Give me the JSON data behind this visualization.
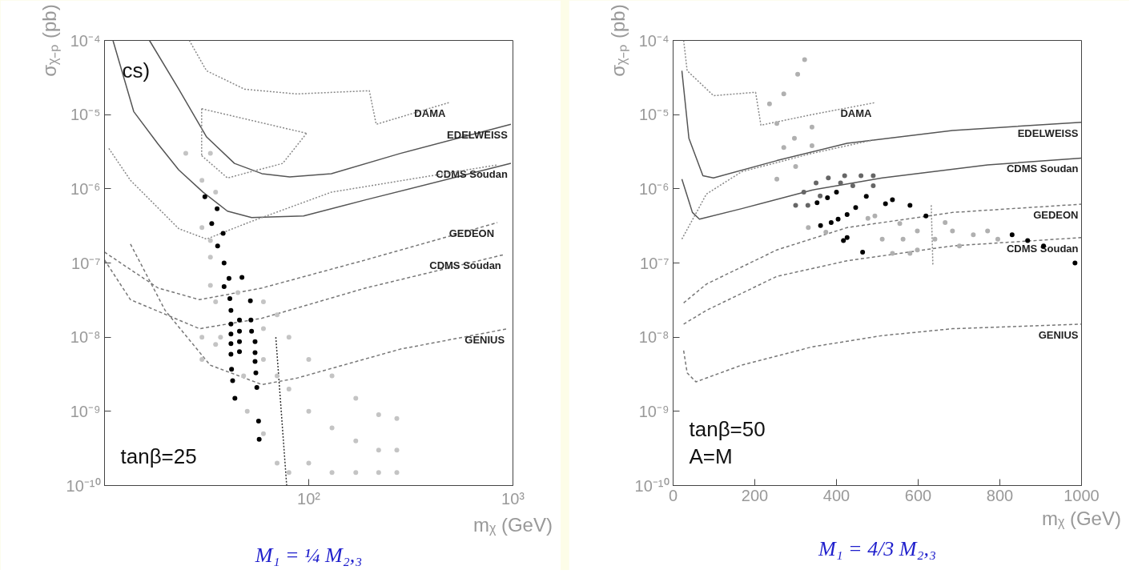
{
  "chart_data": [
    {
      "type": "line",
      "title": "M₁ = ¼ M₂,₃",
      "subtitle": "cs)",
      "xlabel": "mᵪ (GeV)",
      "ylabel": "σᵪ₋ₚ (pb)",
      "log": "xy",
      "grid": false,
      "xlim": [
        10,
        1000
      ],
      "ylim": [
        1e-10,
        0.0001
      ],
      "xticks": [
        {
          "value": 100,
          "label": "10²"
        },
        {
          "value": 1000,
          "label": "10³"
        }
      ],
      "yticks": [
        {
          "value": 1e-10,
          "label": "10⁻¹⁰"
        },
        {
          "value": 1e-09,
          "label": "10⁻⁹"
        },
        {
          "value": 1e-08,
          "label": "10⁻⁸"
        },
        {
          "value": 1e-07,
          "label": "10⁻⁷"
        },
        {
          "value": 1e-06,
          "label": "10⁻⁶"
        },
        {
          "value": 1e-05,
          "label": "10⁻⁵"
        },
        {
          "value": 0.0001,
          "label": "10⁻⁴"
        }
      ],
      "series": [
        {
          "type": "scatter",
          "color": "#c4c4c4",
          "x": [
            30,
            30,
            35,
            35,
            33,
            37,
            45,
            48,
            60,
            50,
            60,
            60,
            60,
            70,
            70,
            70,
            80,
            80,
            80,
            100,
            100,
            100,
            130,
            130,
            130,
            170,
            170,
            170,
            220,
            220,
            220,
            270,
            270,
            270,
            25,
            33,
            30,
            35,
            30,
            33,
            33
          ],
          "values": [
            1e-08,
            5e-09,
            3e-08,
            8e-09,
            5e-08,
            1e-08,
            4e-08,
            3e-09,
            1.3e-08,
            1e-09,
            3e-08,
            5e-09,
            5e-10,
            2e-08,
            3e-09,
            2e-10,
            1e-08,
            2e-09,
            1.5e-10,
            5e-09,
            1e-09,
            2e-10,
            3e-09,
            6e-10,
            1.5e-10,
            1.5e-09,
            4e-10,
            1.5e-10,
            9e-10,
            3e-10,
            1.5e-10,
            8e-10,
            3e-10,
            1.5e-10,
            3e-06,
            3e-06,
            1.3e-06,
            9e-07,
            3e-07,
            2e-07,
            1.2e-07
          ]
        },
        {
          "type": "scatter",
          "color": "#000000",
          "x": [
            31.0,
            35.6,
            33.5,
            38.1,
            35.8,
            38.5,
            40.7,
            47.1,
            38.5,
            41.1,
            51.8,
            41.6,
            45.8,
            52.1,
            41.6,
            45.8,
            52.5,
            41.6,
            45.8,
            54.6,
            41.6,
            45.8,
            54.6,
            41.6,
            54.6,
            41.9,
            55.1,
            42.4,
            43.5,
            55.7,
            56.8,
            57.2
          ],
          "values": [
            7.8e-07,
            5.4e-07,
            3.4e-07,
            2.5e-07,
            1.7e-07,
            1e-07,
            6.2e-08,
            6.4e-08,
            4.8e-08,
            3.3e-08,
            3.1e-08,
            2.3e-08,
            1.7e-08,
            1.7e-08,
            1.5e-08,
            1.2e-08,
            1.2e-08,
            1.1e-08,
            8.7e-09,
            8.7e-09,
            8.2e-09,
            6.4e-09,
            6.2e-09,
            5.9e-09,
            4.7e-09,
            3.7e-09,
            3.3e-09,
            2.6e-09,
            1.5e-09,
            2.1e-09,
            7.4e-10,
            4.2e-10
          ]
        },
        {
          "type": "line",
          "name": "EDELWEISS",
          "line_style": "solid",
          "color": "#555555",
          "x": [
            16.6,
            23.1,
            31.6,
            43.3,
            59,
            80.7,
            129,
            281,
            977
          ],
          "values": [
            0.0001,
            2.2e-05,
            5e-06,
            2.2e-06,
            1.6e-06,
            1.45e-06,
            1.6e-06,
            3e-06,
            7.4e-06
          ]
        },
        {
          "type": "line",
          "name": "CDMS Soudan",
          "line_style": "solid",
          "color": "#555555",
          "x": [
            11,
            13.9,
            18.3,
            23.1,
            30.4,
            40,
            52.5,
            94.4,
            190,
            977
          ],
          "values": [
            0.0001,
            1.1e-05,
            4e-06,
            1.8e-06,
            9e-07,
            5e-07,
            4.1e-07,
            4.3e-07,
            7.1e-07,
            2.2e-06
          ]
        },
        {
          "type": "line",
          "name": "DAMA",
          "line_style": "dotted",
          "color": "#888888",
          "x": [
            26,
            31.6,
            48.5,
            87.3,
            198,
            214,
            485
          ],
          "values": [
            0.0001,
            3.9e-05,
            2.2e-05,
            1.9e-05,
            2.1e-05,
            7.4e-06,
            1.45e-05
          ]
        },
        {
          "type": "line",
          "line_style": "dotted",
          "color": "#888888",
          "x": [
            29.9,
            97.6
          ],
          "values": [
            1.2e-05,
            5.6e-06
          ]
        },
        {
          "type": "line",
          "line_style": "dotted",
          "color": "#888888",
          "x": [
            29.9,
            40,
            74.6,
            97.6
          ],
          "values": [
            2.8e-06,
            1.4e-06,
            2.2e-06,
            5.6e-06
          ]
        },
        {
          "type": "line",
          "line_style": "dotted",
          "color": "#888888",
          "x": [
            29.9,
            29.9
          ],
          "values": [
            1.2e-05,
            2.8e-06
          ]
        },
        {
          "type": "line",
          "line_style": "dotted",
          "color": "#888888",
          "x": [
            10.5,
            13.4,
            23.1,
            31.6,
            50.5,
            129,
            839
          ],
          "values": [
            3.5e-06,
            1.3e-06,
            2.9e-07,
            2.1e-07,
            3.5e-07,
            9e-07,
            2.1e-06
          ]
        },
        {
          "type": "line",
          "name": "GEDEON",
          "line_style": "dashed",
          "color": "#777777",
          "x": [
            10,
            18.3,
            29.2,
            59,
            190,
            839
          ],
          "values": [
            1.4e-07,
            4.6e-08,
            3.2e-08,
            4.6e-08,
            1.1e-07,
            3.5e-07
          ]
        },
        {
          "type": "line",
          "name": "CDMS Soudan",
          "line_style": "dashed",
          "color": "#777777",
          "x": [
            10,
            13.4,
            29.2,
            59,
            190,
            908
          ],
          "values": [
            1.1e-07,
            3.2e-08,
            1.3e-08,
            1.8e-08,
            4.6e-08,
            1.3e-07
          ]
        },
        {
          "type": "line",
          "name": "GENIUS",
          "line_style": "dashed",
          "color": "#777777",
          "x": [
            13.4,
            19.8,
            32.9,
            59,
            87.3,
            281,
            944
          ],
          "values": [
            1.8e-07,
            2.3e-08,
            4.2e-09,
            2.3e-09,
            2.8e-09,
            6.9e-09,
            1.3e-08
          ]
        },
        {
          "type": "line",
          "line_style": "dotted",
          "color": "#333333",
          "x": [
            69,
            78
          ],
          "values": [
            1e-08,
            1e-10
          ]
        }
      ],
      "annotations": [
        "tanβ=25"
      ]
    },
    {
      "type": "line",
      "title": "M₁ = 4/3 M₂,₃",
      "xlabel": "mᵪ (GeV)",
      "ylabel": "σᵪ₋ₚ (pb)",
      "log": "y",
      "grid": false,
      "xlim": [
        0,
        1000
      ],
      "ylim": [
        1e-10,
        0.0001
      ],
      "xticks": [
        0,
        200,
        400,
        600,
        800,
        1000
      ],
      "yticks": [
        {
          "value": 1e-10,
          "label": "10⁻¹⁰"
        },
        {
          "value": 1e-09,
          "label": "10⁻⁹"
        },
        {
          "value": 1e-08,
          "label": "10⁻⁸"
        },
        {
          "value": 1e-07,
          "label": "10⁻⁷"
        },
        {
          "value": 1e-06,
          "label": "10⁻⁶"
        },
        {
          "value": 1e-05,
          "label": "10⁻⁵"
        },
        {
          "value": 0.0001,
          "label": "10⁻⁴"
        }
      ],
      "series": [
        {
          "type": "scatter",
          "color": "#666666",
          "x": [
            300,
            320,
            350,
            380,
            420,
            460,
            490,
            490,
            440,
            410,
            360,
            330
          ],
          "values": [
            6e-07,
            9e-07,
            1.2e-06,
            1.4e-06,
            1.5e-06,
            1.5e-06,
            1.5e-06,
            1.1e-06,
            1.1e-06,
            1.2e-06,
            8e-07,
            6e-07
          ]
        },
        {
          "type": "scatter",
          "color": "#b0b0b0",
          "x": [
            331,
            374,
            477,
            494,
            512,
            555,
            563,
            598,
            598,
            641,
            666,
            684,
            701,
            735,
            770,
            795,
            537,
            580,
            236,
            271,
            305,
            322,
            254,
            297,
            340,
            271,
            340,
            254,
            300
          ],
          "values": [
            3e-07,
            2.6e-07,
            4e-07,
            4.3e-07,
            2.1e-07,
            3.4e-07,
            2.1e-07,
            2.7e-07,
            1.5e-07,
            2.1e-07,
            3.5e-07,
            2.7e-07,
            1.7e-07,
            2.4e-07,
            2.7e-07,
            2.1e-07,
            1.35e-07,
            1.35e-07,
            1.4e-05,
            1.9e-05,
            3.5e-05,
            5.5e-05,
            7.6e-06,
            4.8e-06,
            6.8e-06,
            3.6e-06,
            3.8e-06,
            1.35e-06,
            2e-06
          ]
        },
        {
          "type": "scatter",
          "color": "#000000",
          "x": [
            352.5,
            378,
            400,
            361,
            387,
            404,
            426,
            447,
            473,
            417,
            426,
            464,
            520,
            537,
            580,
            619,
            830,
            868,
            907,
            984
          ],
          "values": [
            6.5e-07,
            7.6e-07,
            9e-07,
            3.2e-07,
            3.5e-07,
            3.9e-07,
            4.5e-07,
            5.6e-07,
            7.9e-07,
            2e-07,
            2.2e-07,
            1.4e-07,
            6.3e-07,
            7.1e-07,
            6e-07,
            4.3e-07,
            2.4e-07,
            2e-07,
            1.7e-07,
            1e-07
          ]
        },
        {
          "type": "line",
          "name": "EDELWEISS",
          "line_style": "solid",
          "color": "#555555",
          "x": [
            21.5,
            38.7,
            73,
            98.9,
            254,
            426,
            684,
            1000
          ],
          "values": [
            3.9e-05,
            4.8e-06,
            1.5e-06,
            1.4e-06,
            2.4e-06,
            4.1e-06,
            6.1e-06,
            7.9e-06
          ]
        },
        {
          "type": "line",
          "name": "CDMS Soudan",
          "line_style": "solid",
          "color": "#555555",
          "x": [
            21.5,
            47.3,
            64.5,
            168,
            340,
            512,
            770,
            1000
          ],
          "values": [
            1.35e-06,
            4.8e-07,
            3.9e-07,
            5.4e-07,
            9.6e-07,
            1.4e-06,
            2.1e-06,
            2.6e-06
          ]
        },
        {
          "type": "line",
          "name": "DAMA",
          "line_style": "dotted",
          "color": "#888888",
          "x": [
            25.8,
            34.4,
            98.9,
            202,
            215,
            340,
            494
          ],
          "values": [
            0.0001,
            3.9e-05,
            1.8e-05,
            2e-05,
            7.2e-06,
            1e-05,
            1.45e-05
          ]
        },
        {
          "type": "line",
          "line_style": "dotted",
          "color": "#888888",
          "x": [
            21.5,
            81.7,
            168,
            340,
            494
          ],
          "values": [
            2.1e-07,
            8.5e-07,
            1.7e-06,
            3e-06,
            4.6e-06
          ]
        },
        {
          "type": "line",
          "line_style": "dotted",
          "color": "#888888",
          "x": [
            632,
            636
          ],
          "values": [
            6e-07,
            9.5e-08
          ]
        },
        {
          "type": "line",
          "name": "GEDEON",
          "line_style": "dashed",
          "color": "#777777",
          "x": [
            25.8,
            81.7,
            254,
            426,
            684,
            1000
          ],
          "values": [
            2.9e-08,
            5.2e-08,
            1.5e-07,
            3e-07,
            4.8e-07,
            6.2e-07
          ]
        },
        {
          "type": "line",
          "name": "CDMS Soudan",
          "line_style": "dashed",
          "color": "#777777",
          "x": [
            25.8,
            81.7,
            254,
            426,
            684,
            1000
          ],
          "values": [
            1.5e-08,
            2.3e-08,
            6.6e-08,
            1.07e-07,
            1.7e-07,
            2.2e-07
          ]
        },
        {
          "type": "line",
          "name": "GENIUS",
          "line_style": "dashed",
          "color": "#777777",
          "x": [
            25.8,
            34.4,
            55.9,
            168,
            340,
            512,
            684,
            1000
          ],
          "values": [
            6.6e-09,
            3.3e-09,
            2.5e-09,
            4.2e-09,
            7.4e-09,
            1.05e-08,
            1.3e-08,
            1.5e-08
          ]
        }
      ],
      "annotations": [
        "tanβ=50",
        "A=M"
      ]
    }
  ]
}
